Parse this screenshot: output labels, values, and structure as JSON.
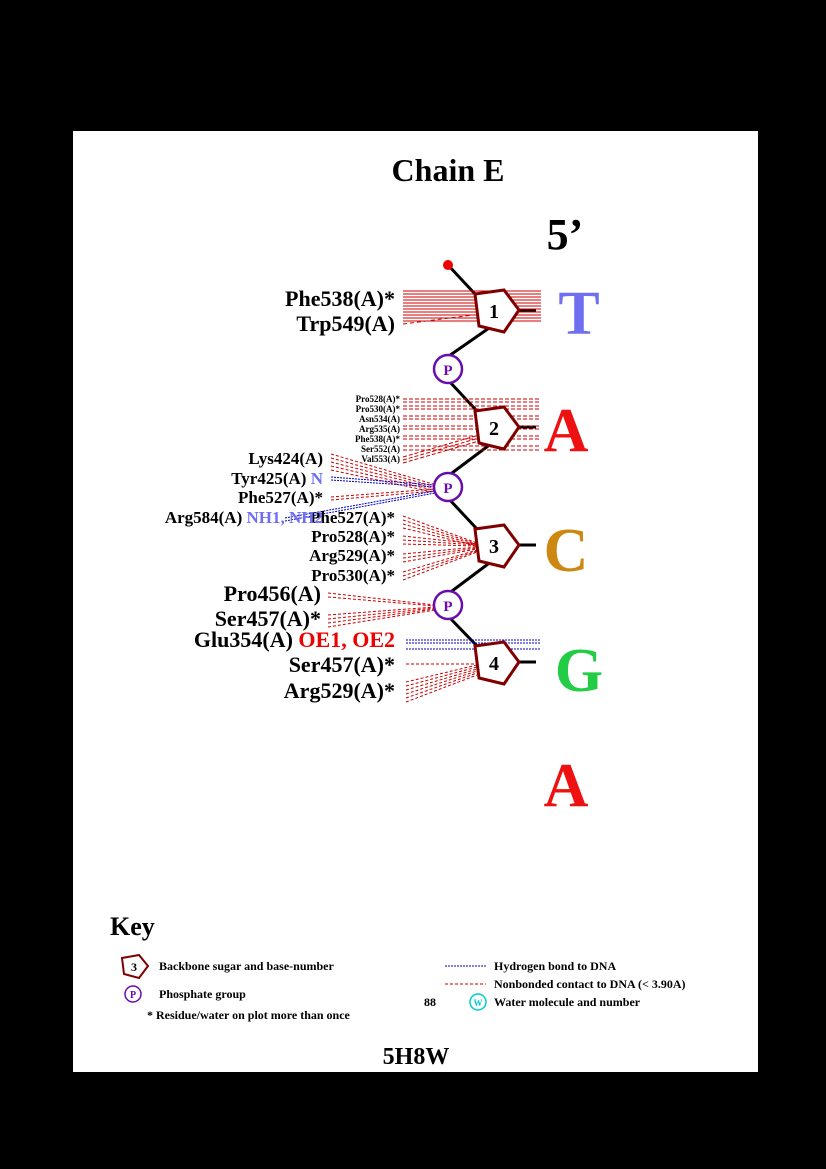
{
  "title": "Chain E",
  "pdb_id": "5H8W",
  "end_label": "5’",
  "colors": {
    "sugar": "#800000",
    "phosphate": "#6a0dad",
    "hbond": "#0000cc",
    "nonbond": "#cc0000",
    "hbond_atom_text": "#6f6ff0",
    "acid_atom_text": "#ee0000",
    "water": "#00cccc"
  },
  "nucleotides": [
    {
      "number": "1",
      "base": "T",
      "base_color": "#6f6ff0"
    },
    {
      "number": "2",
      "base": "A",
      "base_color": "#ee1111"
    },
    {
      "number": "3",
      "base": "C",
      "base_color": "#cc8811"
    },
    {
      "number": "4",
      "base": "G",
      "base_color": "#22cc44"
    },
    {
      "number": "",
      "base": "A",
      "base_color": "#ee1111"
    }
  ],
  "phosphate_label": "P",
  "residues": [
    {
      "label": "Phe538(A)*",
      "atoms": ""
    },
    {
      "label": "Trp549(A)",
      "atoms": ""
    },
    {
      "label": "Pro528(A)*",
      "atoms": ""
    },
    {
      "label": "Pro530(A)*",
      "atoms": ""
    },
    {
      "label": "Asn534(A)",
      "atoms": ""
    },
    {
      "label": "Arg535(A)",
      "atoms": ""
    },
    {
      "label": "Phe538(A)*",
      "atoms": ""
    },
    {
      "label": "Ser552(A)",
      "atoms": ""
    },
    {
      "label": "Val553(A)",
      "atoms": ""
    },
    {
      "label": "Lys424(A)",
      "atoms": ""
    },
    {
      "label": "Tyr425(A)",
      "atoms": "N"
    },
    {
      "label": "Phe527(A)*",
      "atoms": ""
    },
    {
      "label": "Arg584(A)",
      "atoms": "NH1, NH2"
    },
    {
      "label": "Phe527(A)*",
      "atoms": ""
    },
    {
      "label": "Pro528(A)*",
      "atoms": ""
    },
    {
      "label": "Arg529(A)*",
      "atoms": ""
    },
    {
      "label": "Pro530(A)*",
      "atoms": ""
    },
    {
      "label": "Pro456(A)",
      "atoms": ""
    },
    {
      "label": "Ser457(A)*",
      "atoms": ""
    },
    {
      "label": "Glu354(A)",
      "atoms": "OE1, OE2"
    },
    {
      "label": "Ser457(A)*",
      "atoms": ""
    },
    {
      "label": "Arg529(A)*",
      "atoms": ""
    }
  ],
  "key": {
    "title": "Key",
    "sugar_number": "3",
    "sugar_desc": "Backbone sugar and base-number",
    "phosphate_symbol": "P",
    "phosphate_desc": "Phosphate group",
    "star_note": "* Residue/water on plot more than once",
    "hbond_desc": "Hydrogen bond to DNA",
    "nonbond_desc": "Nonbonded contact to DNA (< 3.90A)",
    "water_number": "88",
    "water_symbol": "W",
    "water_desc": "Water molecule and number"
  }
}
